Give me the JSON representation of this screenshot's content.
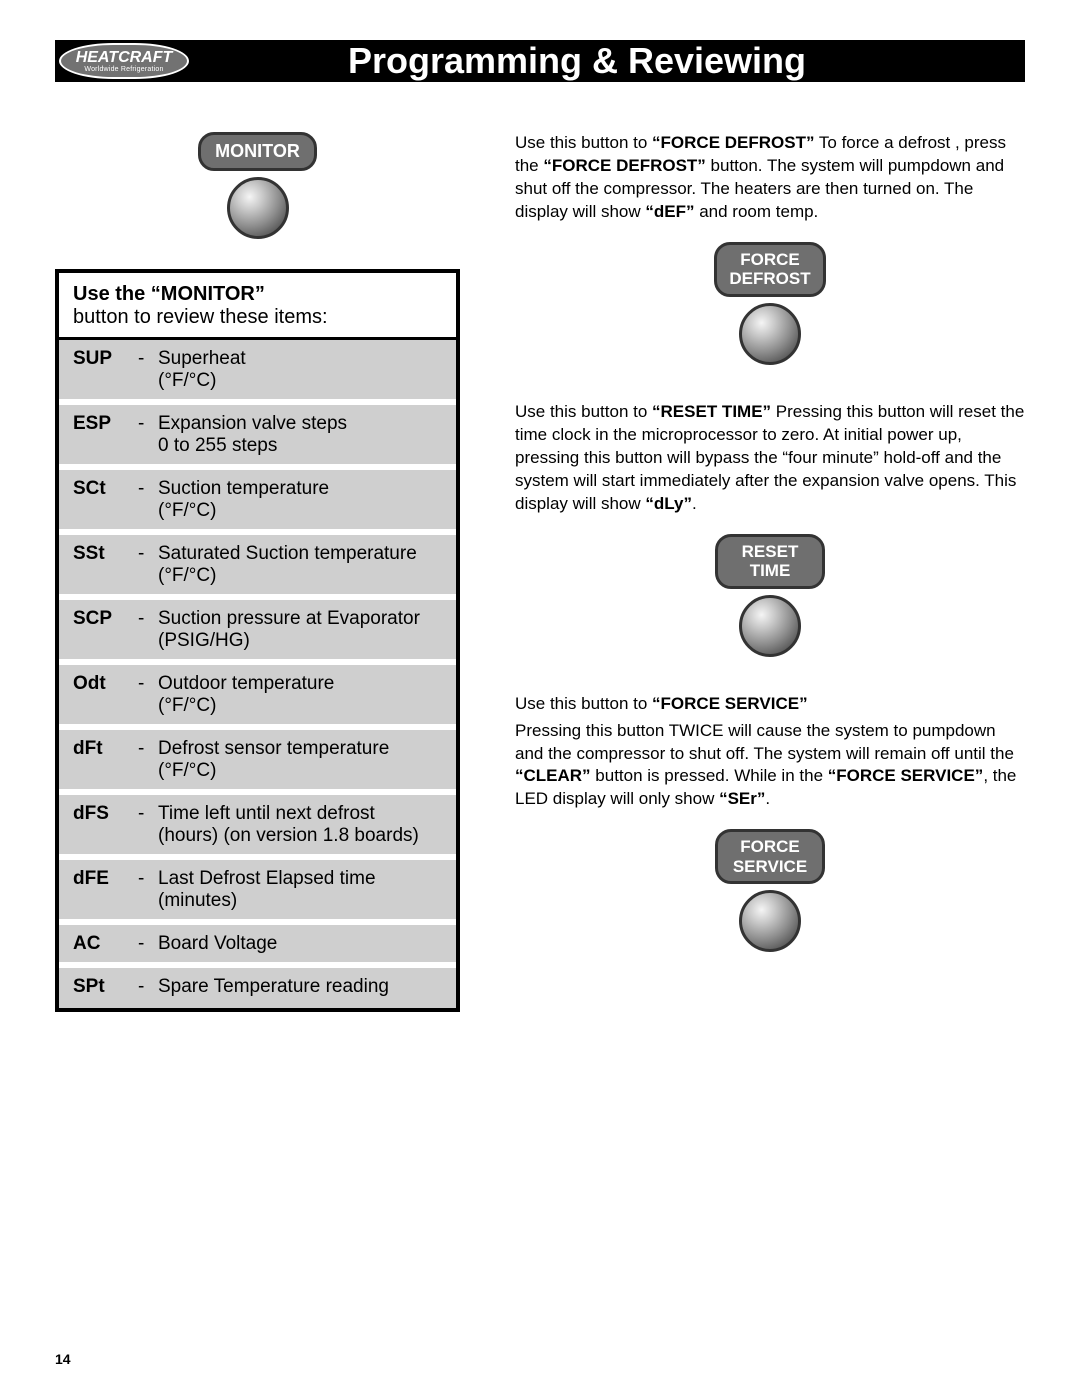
{
  "header": {
    "logo_text": "HEATCRAFT",
    "logo_sub": "Worldwide Refrigeration",
    "title": "Programming & Reviewing"
  },
  "monitor_button": {
    "label": "MONITOR"
  },
  "monitor_box": {
    "heading_bold": "Use the “MONITOR”",
    "heading_rest": "button to review these items:",
    "rows": [
      {
        "code": "SUP",
        "desc": "Superheat\n(°F/°C)"
      },
      {
        "code": "ESP",
        "desc": "Expansion valve steps\n0 to 255 steps"
      },
      {
        "code": "SCt",
        "desc": "Suction temperature\n(°F/°C)"
      },
      {
        "code": "SSt",
        "desc": "Saturated Suction temperature\n(°F/°C)"
      },
      {
        "code": "SCP",
        "desc": "Suction pressure at Evaporator\n(PSIG/HG)"
      },
      {
        "code": "Odt",
        "desc": "Outdoor temperature\n(°F/°C)"
      },
      {
        "code": "dFt",
        "desc": "Defrost sensor temperature\n(°F/°C)"
      },
      {
        "code": "dFS",
        "desc": "Time left until next defrost\n(hours) (on version 1.8 boards)"
      },
      {
        "code": "dFE",
        "desc": "Last Defrost Elapsed time\n(minutes)"
      },
      {
        "code": "AC",
        "desc": "Board Voltage"
      },
      {
        "code": "SPt",
        "desc": "Spare Temperature reading"
      }
    ]
  },
  "right": {
    "force_defrost": {
      "text_pre": "Use this button to ",
      "bold1": "“FORCE DEFROST”",
      "text_mid": " To force a defrost , press the ",
      "bold2": "“FORCE DEFROST”",
      "text_post": " button. The system will pumpdown and shut off the compressor. The heaters are then turned on. The display will show ",
      "bold3": "“dEF”",
      "text_end": " and room temp.",
      "button_label": "FORCE\nDEFROST"
    },
    "reset_time": {
      "text_pre": "Use this button to ",
      "bold1": "“RESET TIME”",
      "text_mid": " Pressing this button will reset the time clock in the microprocessor to zero. At initial power up, pressing this button will bypass the “four minute” hold-off and the system will start immediately after the expansion valve opens. This display will show ",
      "bold2": "“dLy”",
      "text_end": ".",
      "button_label": "RESET\nTIME"
    },
    "force_service": {
      "line1_pre": "Use this button to ",
      "line1_bold": "“FORCE SERVICE”",
      "para2_a": "Pressing this button TWICE will cause the system to pumpdown and the compressor to shut off. The system will remain off until the ",
      "para2_bold1": "“CLEAR”",
      "para2_b": " button is pressed. While in the ",
      "para2_bold2": "“FORCE SERVICE”",
      "para2_c": ", the LED display will only show ",
      "para2_bold3": "“SEr”",
      "para2_d": ".",
      "button_label": "FORCE\nSERVICE"
    }
  },
  "page_number": "14",
  "style": {
    "row_bg": "#cfcfcf",
    "capsule_bg": "#6f6f6f",
    "border_color": "#000000"
  }
}
